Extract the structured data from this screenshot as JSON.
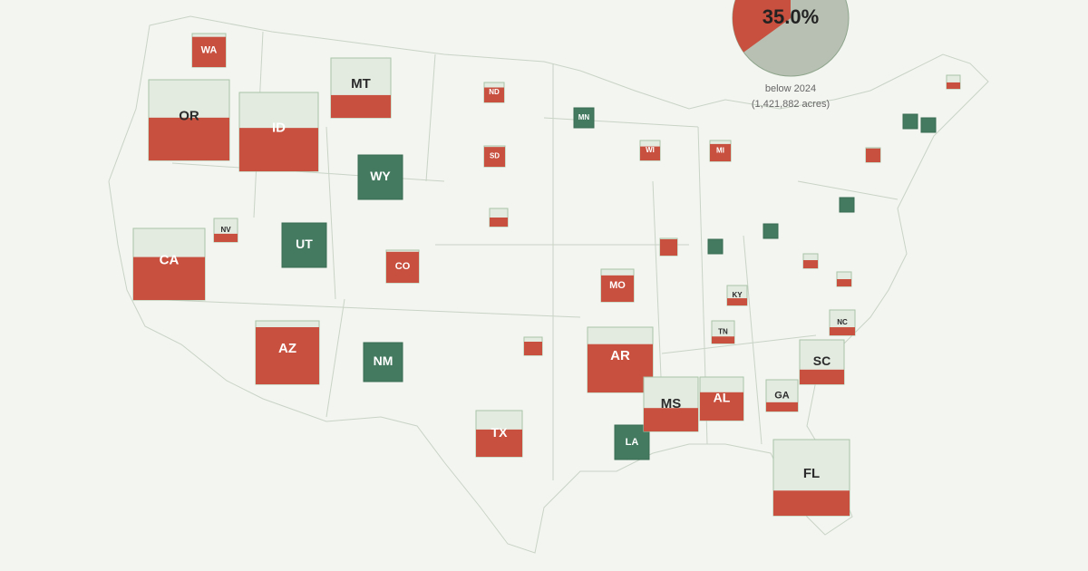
{
  "chart_data": {
    "type": "square-map",
    "color_below": "#c8503f",
    "color_rest": "#e3ebe1",
    "color_above": "#437a60",
    "summary": {
      "type": "pie",
      "values": [
        35
      ],
      "value_labels": [
        "35.0%"
      ],
      "color": "#c8503f",
      "rest_color": "#b7c0b3",
      "caption": "below 2024",
      "caption_detail": "(1,421,882 acres)"
    },
    "states": [
      {
        "label": "WA",
        "share": 90
      },
      {
        "label": "OR",
        "share": 53
      },
      {
        "label": "ID",
        "share": 55
      },
      {
        "label": "MT",
        "share": 38
      },
      {
        "label": "WY",
        "share": null
      },
      {
        "label": "ND",
        "share": 75
      },
      {
        "label": "SD",
        "share": 95
      },
      {
        "label": "MN",
        "share": null
      },
      {
        "label": "CA",
        "share": 60
      },
      {
        "label": "NV",
        "share": 35
      },
      {
        "label": "UT",
        "share": null
      },
      {
        "label": "CO",
        "share": 95
      },
      {
        "label": "AZ",
        "share": 90
      },
      {
        "label": "NM",
        "share": null
      },
      {
        "label": "TX",
        "share": 59
      },
      {
        "label": "MO",
        "share": 81
      },
      {
        "label": "AR",
        "share": 74
      },
      {
        "label": "LA",
        "share": null
      },
      {
        "label": "MS",
        "share": 43
      },
      {
        "label": "AL",
        "share": 65
      },
      {
        "label": "TN",
        "share": 31
      },
      {
        "label": "KY",
        "share": 36
      },
      {
        "label": "GA",
        "share": 29
      },
      {
        "label": "SC",
        "share": 33
      },
      {
        "label": "NC",
        "share": 32
      },
      {
        "label": "FL",
        "share": 33
      },
      {
        "label": "WI",
        "share": 70
      },
      {
        "label": "MI",
        "share": 83
      },
      {
        "label": null,
        "share": 75
      },
      {
        "label": null,
        "share": 50
      },
      {
        "label": null,
        "share": 95
      },
      {
        "label": null,
        "share": null
      },
      {
        "label": null,
        "share": null
      },
      {
        "label": null,
        "share": null
      },
      {
        "label": null,
        "share": 56
      },
      {
        "label": null,
        "share": 50
      },
      {
        "label": null,
        "share": 95
      },
      {
        "label": null,
        "share": 47
      },
      {
        "label": null,
        "share": null
      },
      {
        "label": null,
        "share": null
      }
    ]
  }
}
